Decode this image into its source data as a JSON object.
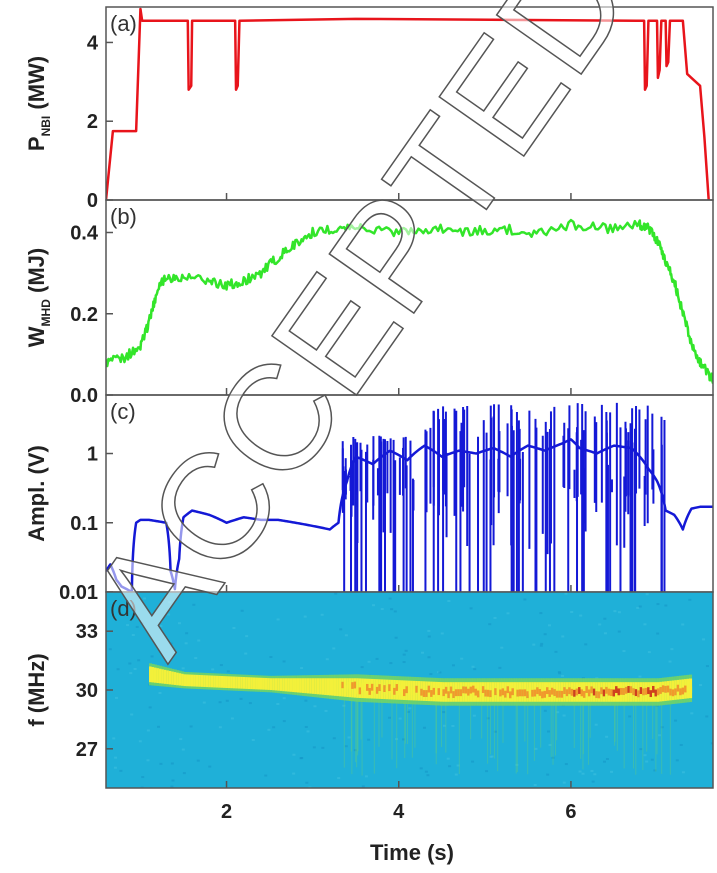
{
  "watermark": "ACCEPTED",
  "chart_data": [
    {
      "id": "a",
      "panel_label": "(a)",
      "type": "line",
      "ylabel": "P",
      "ylabel_sub": "NBI",
      "ylabel_unit": "(MW)",
      "xlim": [
        0.6,
        7.65
      ],
      "ylim": [
        0,
        4.9
      ],
      "yticks": [
        0,
        2,
        4
      ],
      "ytick_labels": [
        "0",
        "2",
        "4"
      ],
      "color": "#e8141b",
      "x": [
        0.6,
        0.68,
        0.72,
        0.95,
        1.0,
        1.02,
        1.05,
        1.1,
        1.55,
        1.56,
        1.59,
        1.6,
        2.1,
        2.11,
        2.13,
        2.15,
        3.5,
        6.85,
        6.86,
        6.88,
        6.9,
        7.0,
        7.01,
        7.03,
        7.05,
        7.1,
        7.11,
        7.13,
        7.15,
        7.3,
        7.35,
        7.4,
        7.5,
        7.55,
        7.6
      ],
      "values": [
        0,
        1.75,
        1.75,
        1.75,
        4.85,
        4.55,
        4.55,
        4.55,
        4.55,
        2.8,
        2.9,
        4.55,
        4.55,
        2.8,
        2.9,
        4.55,
        4.6,
        4.55,
        2.8,
        2.9,
        4.55,
        4.55,
        3.1,
        3.3,
        4.55,
        4.55,
        3.4,
        3.5,
        4.55,
        4.55,
        3.2,
        3.1,
        2.9,
        1.6,
        0
      ]
    },
    {
      "id": "b",
      "panel_label": "(b)",
      "type": "line",
      "ylabel": "W",
      "ylabel_sub": "MHD",
      "ylabel_unit": "(MJ)",
      "xlim": [
        0.6,
        7.65
      ],
      "ylim": [
        0,
        0.48
      ],
      "yticks": [
        0.0,
        0.2,
        0.4
      ],
      "ytick_labels": [
        "0.0",
        "0.2",
        "0.4"
      ],
      "color": "#33e52a",
      "x": [
        0.6,
        0.8,
        1.0,
        1.1,
        1.2,
        1.3,
        1.5,
        1.8,
        2.0,
        2.2,
        2.4,
        2.6,
        2.8,
        3.0,
        3.3,
        3.6,
        4.0,
        4.4,
        4.8,
        5.2,
        5.6,
        6.0,
        6.4,
        6.8,
        6.9,
        7.0,
        7.1,
        7.2,
        7.3,
        7.4,
        7.5,
        7.6,
        7.65
      ],
      "values": [
        0.08,
        0.09,
        0.12,
        0.18,
        0.26,
        0.29,
        0.29,
        0.28,
        0.27,
        0.28,
        0.3,
        0.34,
        0.37,
        0.4,
        0.41,
        0.41,
        0.4,
        0.41,
        0.4,
        0.41,
        0.4,
        0.42,
        0.41,
        0.42,
        0.41,
        0.38,
        0.33,
        0.28,
        0.2,
        0.13,
        0.08,
        0.05,
        0.04
      ]
    },
    {
      "id": "c",
      "panel_label": "(c)",
      "type": "line",
      "ylabel": "Ampl. (V)",
      "yscale": "log",
      "xlim": [
        0.6,
        7.65
      ],
      "ylim": [
        0.01,
        7
      ],
      "yticks": [
        0.01,
        0.1,
        1
      ],
      "ytick_labels": [
        "0.01",
        "0.1",
        "1"
      ],
      "color": "#1419d6",
      "x": [
        0.6,
        0.65,
        0.72,
        0.78,
        0.9,
        0.95,
        1.0,
        1.1,
        1.3,
        1.35,
        1.4,
        1.45,
        1.5,
        1.6,
        1.8,
        2.0,
        2.2,
        2.4,
        2.6,
        2.8,
        3.0,
        3.2,
        3.3,
        3.4,
        3.5,
        3.7,
        3.9,
        4.1,
        4.3,
        4.5,
        4.7,
        4.9,
        5.1,
        5.3,
        5.5,
        5.7,
        5.9,
        6.0,
        6.1,
        6.3,
        6.5,
        6.7,
        6.8,
        6.9,
        7.0,
        7.1,
        7.2,
        7.3,
        7.4,
        7.5,
        7.65
      ],
      "values": [
        0.02,
        0.025,
        0.015,
        0.012,
        0.01,
        0.1,
        0.11,
        0.11,
        0.1,
        0.02,
        0.011,
        0.03,
        0.12,
        0.15,
        0.13,
        0.1,
        0.12,
        0.11,
        0.11,
        0.1,
        0.09,
        0.08,
        0.1,
        0.4,
        0.9,
        0.7,
        1.1,
        0.8,
        1.3,
        0.9,
        1.1,
        1.0,
        1.2,
        0.9,
        1.3,
        1.1,
        1.4,
        1.6,
        1.2,
        1.0,
        1.3,
        1.2,
        0.9,
        0.6,
        0.4,
        0.15,
        0.13,
        0.08,
        0.16,
        0.17,
        0.17
      ]
    },
    {
      "id": "d",
      "panel_label": "(d)",
      "type": "heatmap",
      "ylabel": "f (MHz)",
      "xlim": [
        0.6,
        7.65
      ],
      "ylim": [
        25,
        35
      ],
      "yticks": [
        27,
        30,
        33
      ],
      "ytick_labels": [
        "27",
        "30",
        "33"
      ],
      "xticks": [
        2,
        4,
        6
      ],
      "xtick_labels": [
        "2",
        "4",
        "6"
      ],
      "xlabel": "Time (s)",
      "background_color": "#1fb0d8",
      "colormap": [
        "#1fb0d8",
        "#6fd36a",
        "#f3f03a",
        "#f08a2a",
        "#c8201a"
      ],
      "mode_band": {
        "x": [
          1.1,
          1.5,
          2.0,
          2.5,
          3.0,
          3.5,
          4.0,
          4.5,
          5.0,
          5.5,
          6.0,
          6.5,
          7.0,
          7.4
        ],
        "freq_center": [
          30.8,
          30.5,
          30.4,
          30.3,
          30.2,
          30.1,
          30.0,
          29.9,
          29.9,
          29.9,
          29.9,
          29.9,
          29.9,
          30.1
        ],
        "freq_halfwidth": [
          0.4,
          0.3,
          0.3,
          0.3,
          0.4,
          0.5,
          0.5,
          0.5,
          0.5,
          0.5,
          0.5,
          0.5,
          0.5,
          0.5
        ],
        "intensity": [
          0.3,
          0.2,
          0.15,
          0.2,
          0.45,
          0.6,
          0.65,
          0.7,
          0.7,
          0.72,
          0.8,
          0.82,
          0.85,
          0.55
        ]
      }
    }
  ]
}
